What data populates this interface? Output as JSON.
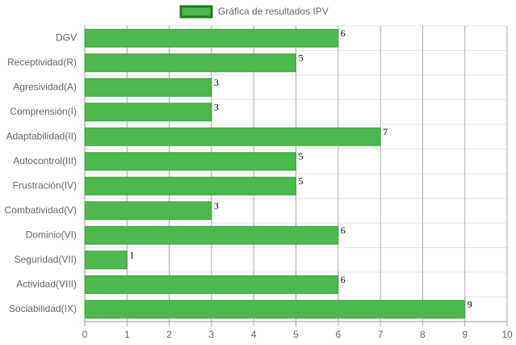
{
  "chart_data": {
    "type": "bar",
    "horizontal": true,
    "categories": [
      "DGV",
      "Receptividad(R)",
      "Agresividad(A)",
      "Comprensión(I)",
      "Adaptabilidad(II)",
      "Autocontrol(III)",
      "Frustración(IV)",
      "Combatividad(V)",
      "Dominio(VI)",
      "Seguridad(VII)",
      "Actividad(VIII)",
      "Sociabilidad(IX)"
    ],
    "series": [
      {
        "name": "Gráfica de resultados IPV",
        "color": "#4db84d",
        "values": [
          6,
          5,
          3,
          3,
          7,
          5,
          5,
          3,
          6,
          1,
          6,
          9
        ]
      }
    ],
    "xlim": [
      0,
      10
    ],
    "xticks": [
      0,
      1,
      2,
      3,
      4,
      5,
      6,
      7,
      8,
      9,
      10
    ],
    "grid": true,
    "legend": "top"
  }
}
